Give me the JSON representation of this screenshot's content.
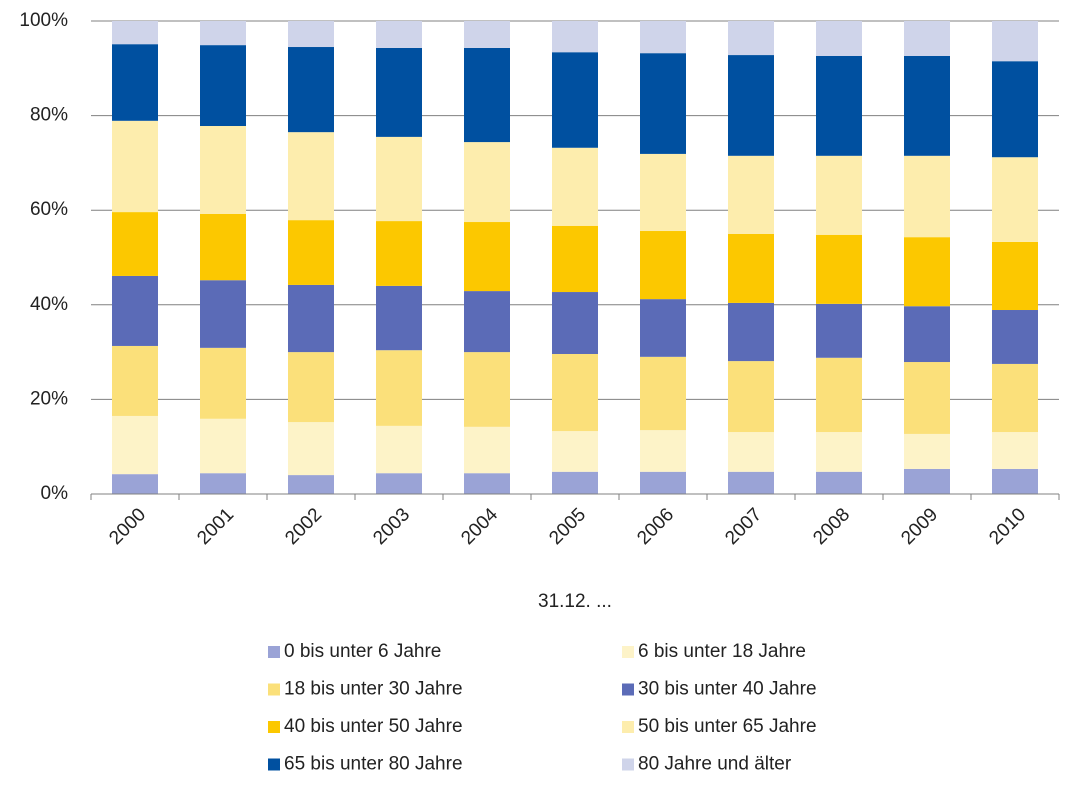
{
  "chart_data": {
    "type": "bar",
    "stacked": true,
    "x_label": "31.12. ...",
    "categories": [
      "2000",
      "2001",
      "2002",
      "2003",
      "2004",
      "2005",
      "2006",
      "2007",
      "2008",
      "2009",
      "2010"
    ],
    "series": [
      {
        "name": "0 bis unter 6 Jahre",
        "color": "#9aa3d6",
        "values": [
          4.2,
          4.4,
          4.0,
          4.4,
          4.4,
          4.7,
          4.7,
          4.7,
          4.7,
          5.3,
          5.3
        ]
      },
      {
        "name": "6 bis unter 18 Jahre",
        "color": "#fdf3c8",
        "values": [
          12.3,
          11.5,
          11.2,
          10.0,
          9.8,
          8.6,
          8.8,
          8.4,
          8.4,
          7.4,
          7.8
        ]
      },
      {
        "name": "18 bis unter 30 Jahre",
        "color": "#fbe07a",
        "values": [
          14.8,
          15.0,
          14.8,
          16.0,
          15.8,
          16.3,
          15.5,
          15.0,
          15.7,
          15.2,
          14.4
        ]
      },
      {
        "name": "30 bis unter 40 Jahre",
        "color": "#5b6bb7",
        "values": [
          14.8,
          14.3,
          14.2,
          13.6,
          12.9,
          13.1,
          12.2,
          12.3,
          11.4,
          11.8,
          11.4
        ]
      },
      {
        "name": "40 bis unter 50 Jahre",
        "color": "#fcc800",
        "values": [
          13.5,
          14.0,
          13.7,
          13.7,
          14.6,
          14.0,
          14.4,
          14.6,
          14.6,
          14.6,
          14.4
        ]
      },
      {
        "name": "50 bis unter 65 Jahre",
        "color": "#fdedad",
        "values": [
          19.3,
          18.6,
          18.6,
          17.8,
          16.9,
          16.5,
          16.3,
          16.5,
          16.7,
          17.2,
          17.9
        ]
      },
      {
        "name": "65 bis unter 80 Jahre",
        "color": "#0050a0",
        "values": [
          16.2,
          17.1,
          18.0,
          18.8,
          19.9,
          20.2,
          21.3,
          21.3,
          21.1,
          21.1,
          20.3
        ]
      },
      {
        "name": "80 Jahre und älter",
        "color": "#cfd4ea",
        "values": [
          4.9,
          5.1,
          5.5,
          5.7,
          5.7,
          6.6,
          6.8,
          7.2,
          7.4,
          7.4,
          8.5
        ]
      }
    ],
    "ylim": [
      0,
      100
    ],
    "yticks": [
      {
        "value": 0,
        "label": "0%"
      },
      {
        "value": 20,
        "label": "20%"
      },
      {
        "value": 40,
        "label": "40%"
      },
      {
        "value": 60,
        "label": "60%"
      },
      {
        "value": 80,
        "label": "80%"
      },
      {
        "value": 100,
        "label": "100%"
      }
    ],
    "grid": true
  }
}
